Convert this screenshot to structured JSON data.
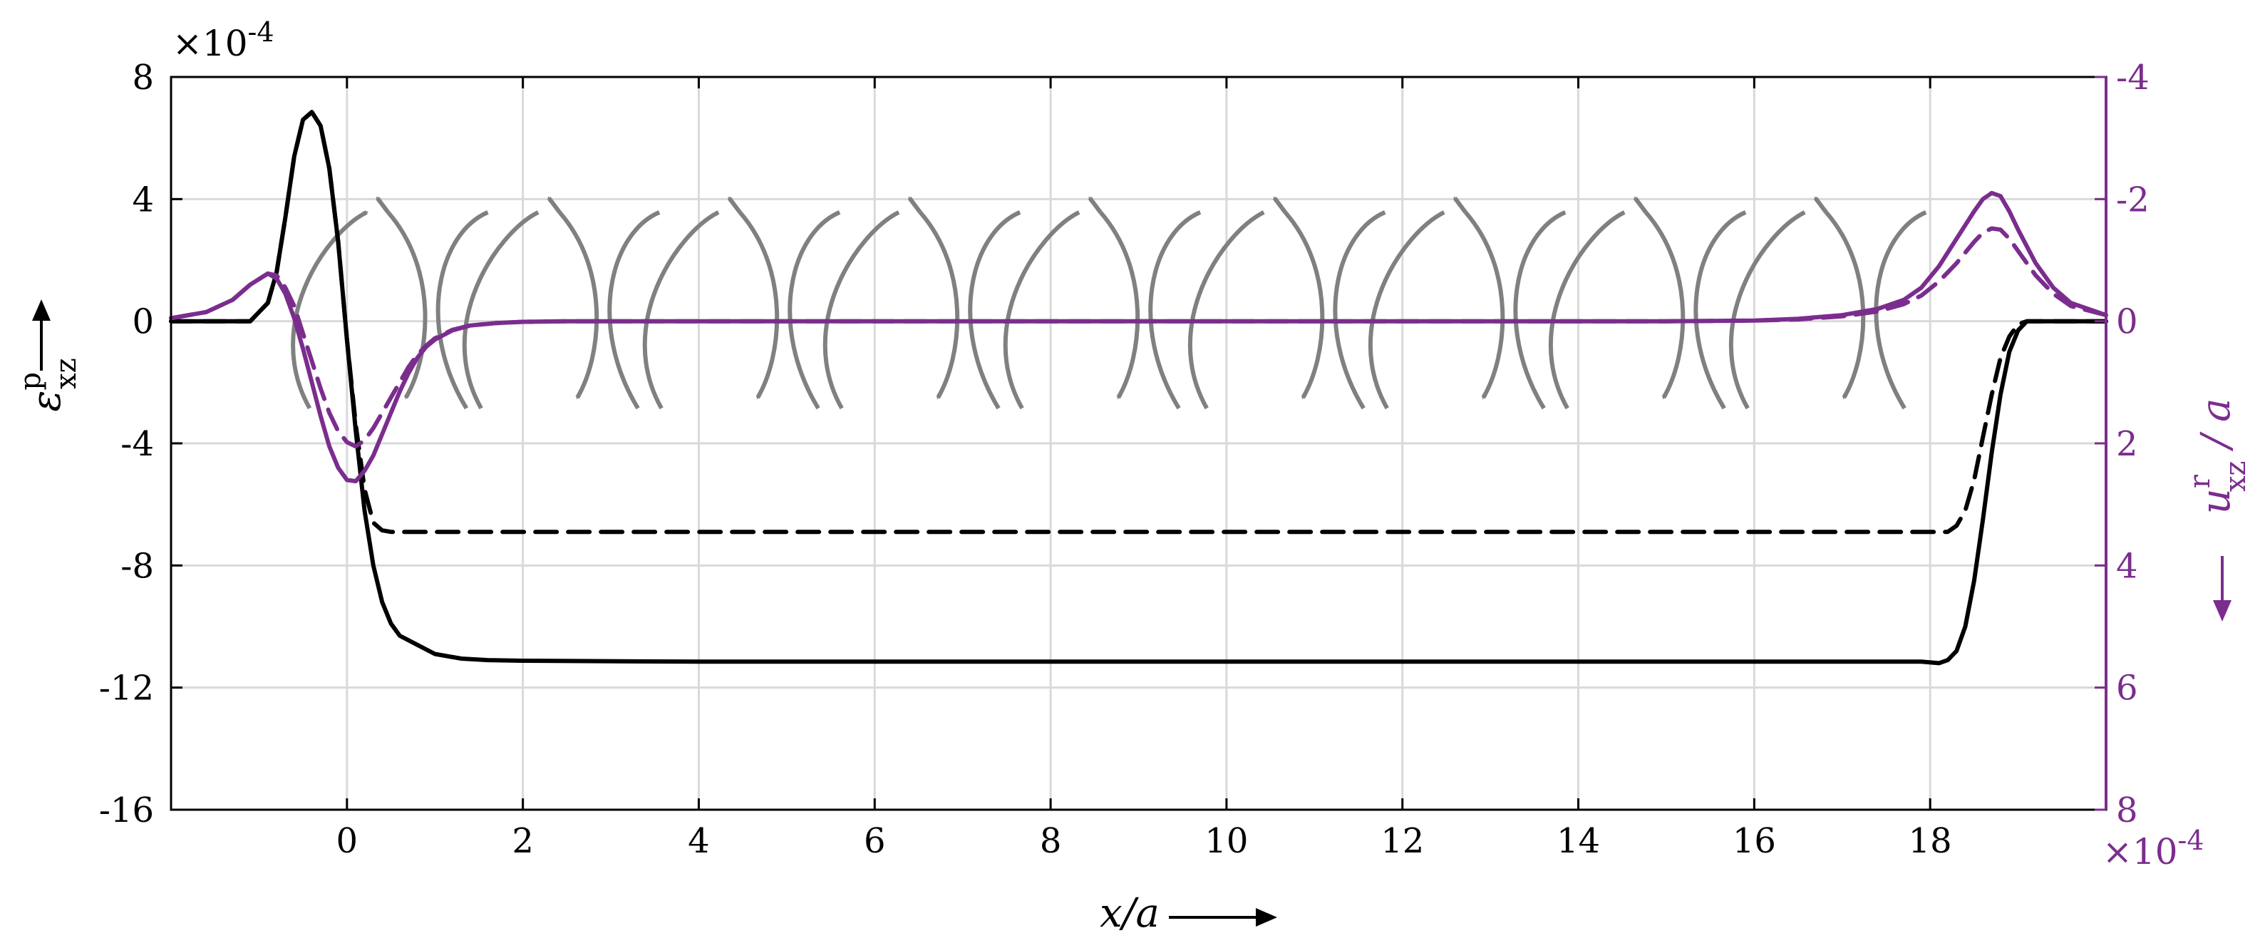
{
  "colors": {
    "left": "#000000",
    "right": "#7B2D8E",
    "arrows": "#808080",
    "grid": "#d9d9d9"
  },
  "chart_data": {
    "type": "line",
    "xlabel": "x/a",
    "ylabel_left": {
      "base": "ε",
      "sup": "p",
      "sub": "xz"
    },
    "ylabel_right": {
      "base": "u",
      "sup": "r",
      "sub": "xz",
      "suffix": " / a"
    },
    "left_exponent": "×10",
    "left_exponent_power": "-4",
    "right_exponent": "×10",
    "right_exponent_power": "-4",
    "xlim": [
      -2,
      20
    ],
    "ylim_left": [
      -16,
      8
    ],
    "ylim_right": [
      8,
      -4
    ],
    "right_axis_reversed": true,
    "grid": true,
    "xticks": [
      0,
      2,
      4,
      6,
      8,
      10,
      12,
      14,
      16,
      18
    ],
    "xtick_labels": [
      "0",
      "2",
      "4",
      "6",
      "8",
      "10",
      "12",
      "14",
      "16",
      "18"
    ],
    "yticks_left": [
      8,
      4,
      0,
      -4,
      -8,
      -12,
      -16
    ],
    "ytick_labels_left": [
      "8",
      "4",
      "0",
      "-4",
      "-8",
      "-12",
      "-16"
    ],
    "yticks_right": [
      -4,
      -2,
      0,
      2,
      4,
      6,
      8
    ],
    "ytick_labels_right": [
      "-4",
      "-2",
      "0",
      "2",
      "4",
      "6",
      "8"
    ],
    "series": [
      {
        "axis": "left",
        "style": "solid",
        "x": [
          -2,
          -1.1,
          -0.9,
          -0.8,
          -0.7,
          -0.6,
          -0.5,
          -0.4,
          -0.3,
          -0.2,
          -0.1,
          0,
          0.1,
          0.2,
          0.3,
          0.4,
          0.5,
          0.6,
          0.8,
          1.0,
          1.3,
          1.6,
          2,
          4,
          8,
          12,
          16,
          17.9,
          18.1,
          18.2,
          18.3,
          18.4,
          18.5,
          18.6,
          18.7,
          18.8,
          18.9,
          19.0,
          19.1,
          20
        ],
        "y": [
          0,
          0,
          0.6,
          1.6,
          3.4,
          5.4,
          6.6,
          6.85,
          6.4,
          5.0,
          2.6,
          -0.6,
          -3.6,
          -6.2,
          -8.0,
          -9.2,
          -9.9,
          -10.3,
          -10.6,
          -10.9,
          -11.05,
          -11.1,
          -11.12,
          -11.15,
          -11.15,
          -11.15,
          -11.15,
          -11.15,
          -11.2,
          -11.1,
          -10.8,
          -10.0,
          -8.5,
          -6.5,
          -4.3,
          -2.4,
          -1.0,
          -0.3,
          0,
          0
        ]
      },
      {
        "axis": "left",
        "style": "dashed",
        "x": [
          -2,
          -1.1,
          -0.9,
          -0.8,
          -0.7,
          -0.6,
          -0.5,
          -0.4,
          -0.3,
          -0.2,
          -0.1,
          0,
          0.1,
          0.2,
          0.3,
          0.4,
          0.5,
          1,
          4,
          8,
          12,
          16,
          17.9,
          18.2,
          18.3,
          18.4,
          18.5,
          18.6,
          18.7,
          18.8,
          18.9,
          19.0,
          19.1,
          20
        ],
        "y": [
          0,
          0,
          0.6,
          1.6,
          3.4,
          5.4,
          6.6,
          6.85,
          6.4,
          5.0,
          2.6,
          -0.6,
          -3.4,
          -5.5,
          -6.6,
          -6.85,
          -6.9,
          -6.9,
          -6.9,
          -6.9,
          -6.9,
          -6.9,
          -6.9,
          -6.9,
          -6.7,
          -6.2,
          -5.2,
          -3.8,
          -2.4,
          -1.2,
          -0.5,
          -0.1,
          0,
          0
        ]
      },
      {
        "axis": "right",
        "style": "solid",
        "x": [
          -2,
          -1.6,
          -1.3,
          -1.1,
          -0.9,
          -0.8,
          -0.7,
          -0.6,
          -0.5,
          -0.4,
          -0.3,
          -0.2,
          -0.1,
          0,
          0.1,
          0.2,
          0.3,
          0.4,
          0.5,
          0.6,
          0.7,
          0.8,
          0.9,
          1.0,
          1.2,
          1.4,
          1.7,
          2.0,
          2.5,
          3,
          4,
          8,
          12,
          15,
          16,
          16.5,
          17,
          17.4,
          17.7,
          17.9,
          18.1,
          18.3,
          18.5,
          18.6,
          18.7,
          18.8,
          18.9,
          19.0,
          19.2,
          19.4,
          19.6,
          20
        ],
        "y": [
          -0.05,
          -0.15,
          -0.35,
          -0.6,
          -0.78,
          -0.7,
          -0.45,
          -0.05,
          0.45,
          1.0,
          1.55,
          2.05,
          2.4,
          2.6,
          2.62,
          2.45,
          2.2,
          1.85,
          1.5,
          1.15,
          0.85,
          0.6,
          0.42,
          0.3,
          0.15,
          0.07,
          0.03,
          0.01,
          0,
          0,
          0,
          0,
          0,
          0,
          -0.01,
          -0.04,
          -0.1,
          -0.2,
          -0.35,
          -0.55,
          -0.9,
          -1.35,
          -1.8,
          -2.0,
          -2.1,
          -2.05,
          -1.8,
          -1.5,
          -0.95,
          -0.55,
          -0.3,
          -0.1
        ]
      },
      {
        "axis": "right",
        "style": "dashed",
        "x": [
          -2,
          -1.6,
          -1.3,
          -1.1,
          -0.9,
          -0.8,
          -0.7,
          -0.6,
          -0.5,
          -0.4,
          -0.3,
          -0.2,
          -0.1,
          0,
          0.1,
          0.2,
          0.3,
          0.4,
          0.5,
          0.6,
          0.7,
          0.8,
          0.9,
          1.0,
          1.2,
          1.4,
          1.7,
          2.0,
          2.5,
          3,
          4,
          8,
          12,
          15,
          16,
          16.5,
          17,
          17.4,
          17.7,
          17.9,
          18.1,
          18.3,
          18.5,
          18.6,
          18.7,
          18.8,
          18.9,
          19.0,
          19.2,
          19.4,
          19.6,
          20
        ],
        "y": [
          -0.05,
          -0.15,
          -0.35,
          -0.6,
          -0.78,
          -0.75,
          -0.55,
          -0.25,
          0.2,
          0.65,
          1.1,
          1.5,
          1.8,
          1.98,
          2.05,
          1.95,
          1.75,
          1.5,
          1.25,
          1.0,
          0.75,
          0.55,
          0.4,
          0.28,
          0.14,
          0.07,
          0.03,
          0.01,
          0,
          0,
          0,
          0,
          0,
          0,
          -0.01,
          -0.03,
          -0.08,
          -0.16,
          -0.28,
          -0.42,
          -0.65,
          -0.95,
          -1.3,
          -1.45,
          -1.52,
          -1.5,
          -1.35,
          -1.15,
          -0.75,
          -0.45,
          -0.25,
          -0.1
        ]
      }
    ],
    "curved_arrow_pairs_x": [
      -0.1,
      1.85,
      3.9,
      5.95,
      8.0,
      10.1,
      12.15,
      14.2,
      16.25
    ]
  }
}
